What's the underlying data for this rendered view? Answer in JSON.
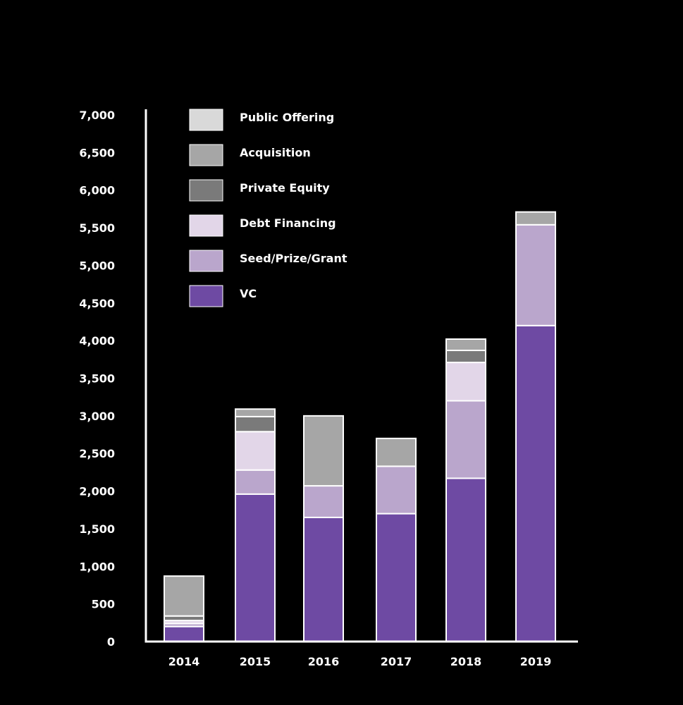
{
  "chart_data": {
    "type": "bar",
    "stacked": true,
    "title": "",
    "xlabel": "",
    "ylabel": "",
    "ylim": [
      0,
      7000
    ],
    "yticks": [
      0,
      500,
      1000,
      1500,
      2000,
      2500,
      3000,
      3500,
      4000,
      4500,
      5000,
      5500,
      6000,
      6500,
      7000
    ],
    "ytick_labels": [
      "0",
      "500",
      "1,000",
      "1,500",
      "2,000",
      "2,500",
      "3,000",
      "3,500",
      "4,000",
      "4,500",
      "5,000",
      "5,500",
      "6,000",
      "6,500",
      "7,000"
    ],
    "grid": false,
    "legend_position": "top-left",
    "categories": [
      "2014",
      "2015",
      "2016",
      "2017",
      "2018",
      "2019"
    ],
    "series": [
      {
        "name": "VC",
        "color": "#6e4aa3",
        "values": [
          200,
          1960,
          1650,
          1700,
          2170,
          4200
        ]
      },
      {
        "name": "Seed/Prize/Grant",
        "color": "#baa6cc",
        "values": [
          40,
          320,
          420,
          630,
          1030,
          1340
        ]
      },
      {
        "name": "Debt Financing",
        "color": "#e2d6e8",
        "values": [
          40,
          510,
          0,
          0,
          510,
          0
        ]
      },
      {
        "name": "Private Equity",
        "color": "#7a7a7a",
        "values": [
          60,
          200,
          0,
          0,
          160,
          0
        ]
      },
      {
        "name": "Acquisition",
        "color": "#a6a6a6",
        "values": [
          530,
          100,
          930,
          370,
          150,
          170
        ]
      },
      {
        "name": "Public Offering",
        "color": "#d9d9d9",
        "values": [
          0,
          0,
          0,
          0,
          0,
          0
        ]
      }
    ],
    "legend_order": [
      "Public Offering",
      "Acquisition",
      "Private Equity",
      "Debt Financing",
      "Seed/Prize/Grant",
      "VC"
    ],
    "colors": {
      "background": "#000000",
      "axis": "#ffffff",
      "text": "#ffffff",
      "segment_border": "#ffffff"
    }
  }
}
